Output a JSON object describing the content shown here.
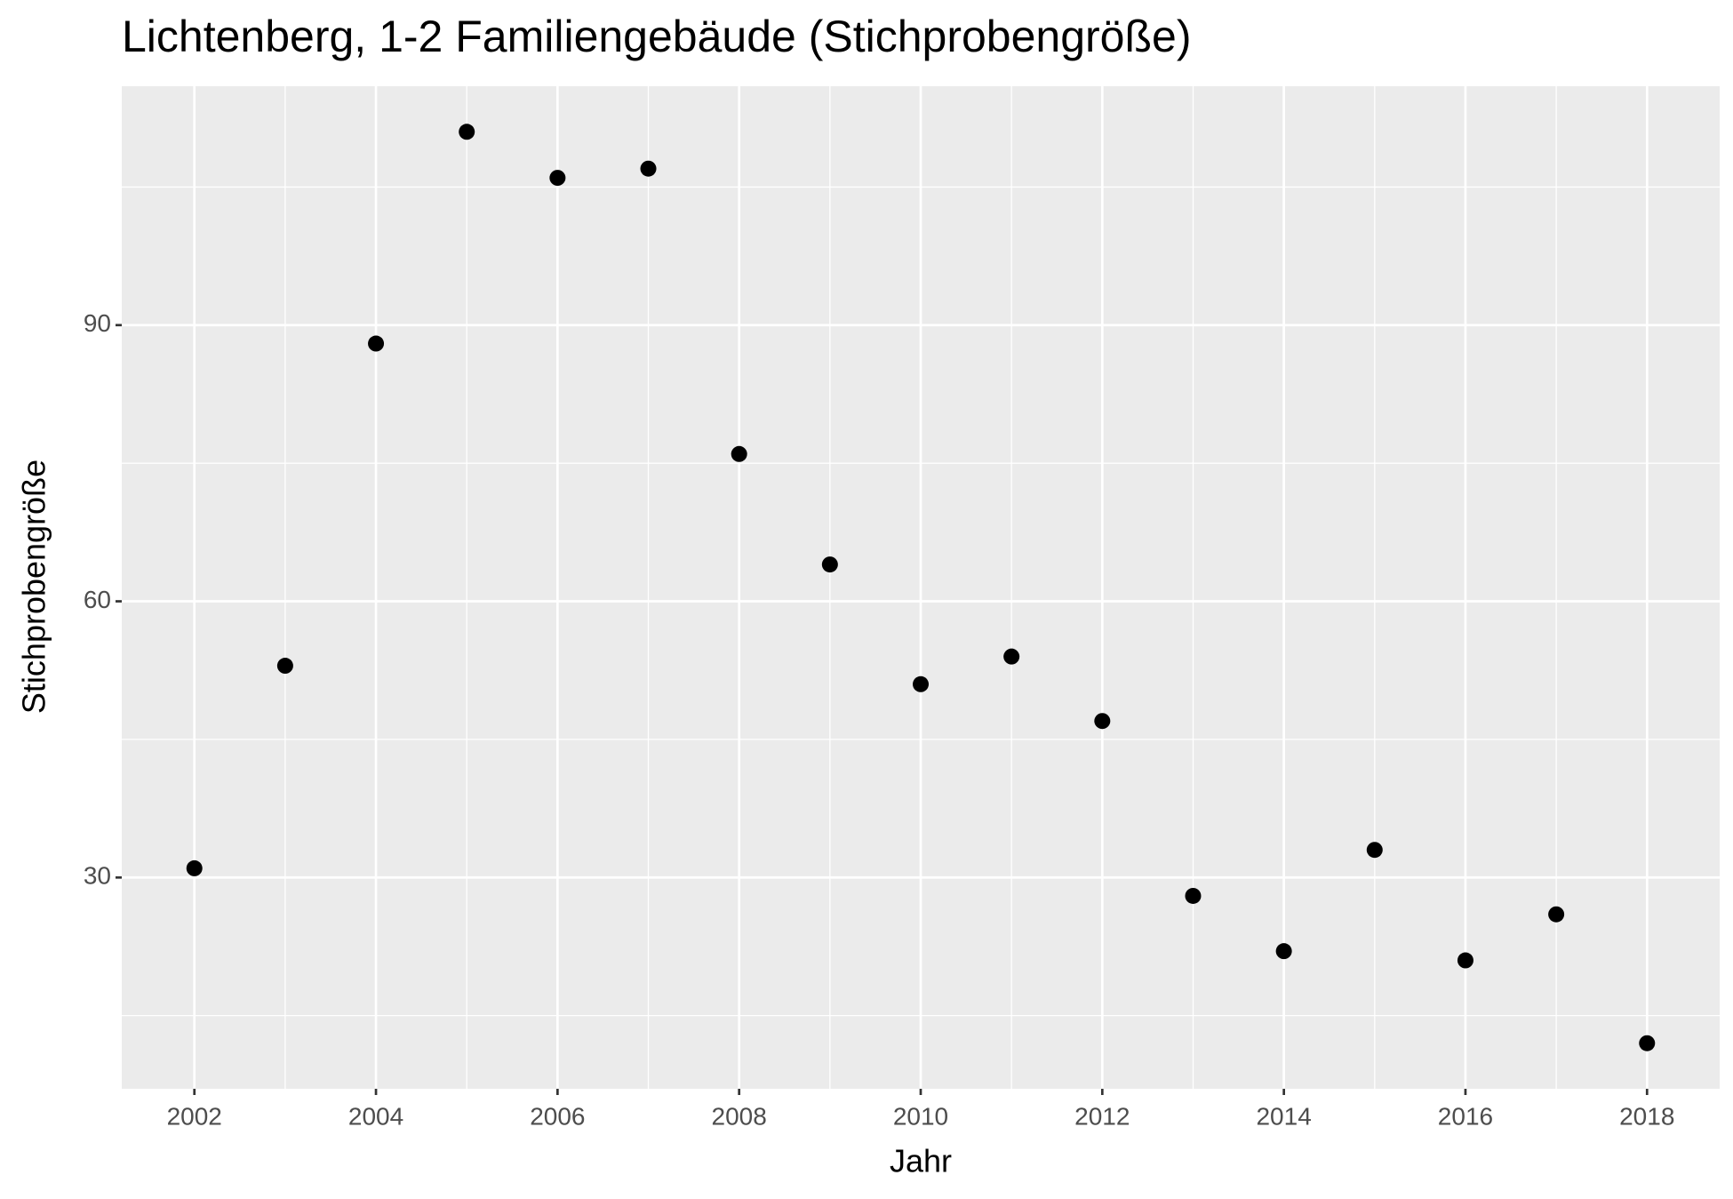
{
  "chart_data": {
    "type": "scatter",
    "title": "Lichtenberg, 1-2 Familiengebäude (Stichprobengröße)",
    "x_label": "Jahr",
    "y_label": "Stichprobengröße",
    "x": [
      2002,
      2003,
      2004,
      2005,
      2006,
      2007,
      2008,
      2009,
      2010,
      2011,
      2012,
      2013,
      2014,
      2015,
      2016,
      2017,
      2018
    ],
    "series": [
      {
        "color": "#000000",
        "values": [
          31,
          53,
          88,
          111,
          106,
          107,
          76,
          64,
          51,
          54,
          47,
          28,
          22,
          33,
          21,
          26,
          12
        ]
      }
    ],
    "xlim": [
      2001.2,
      2018.8
    ],
    "ylim": [
      7.05,
      115.95
    ],
    "xticks": [
      2002,
      2004,
      2006,
      2008,
      2010,
      2012,
      2014,
      2016,
      2018
    ],
    "yticks": [
      30,
      60,
      90
    ],
    "xminor_ticks": [
      2003,
      2005,
      2007,
      2009,
      2011,
      2013,
      2015,
      2017
    ],
    "yminor_ticks": [
      15,
      45,
      75,
      105
    ],
    "grid": true
  }
}
